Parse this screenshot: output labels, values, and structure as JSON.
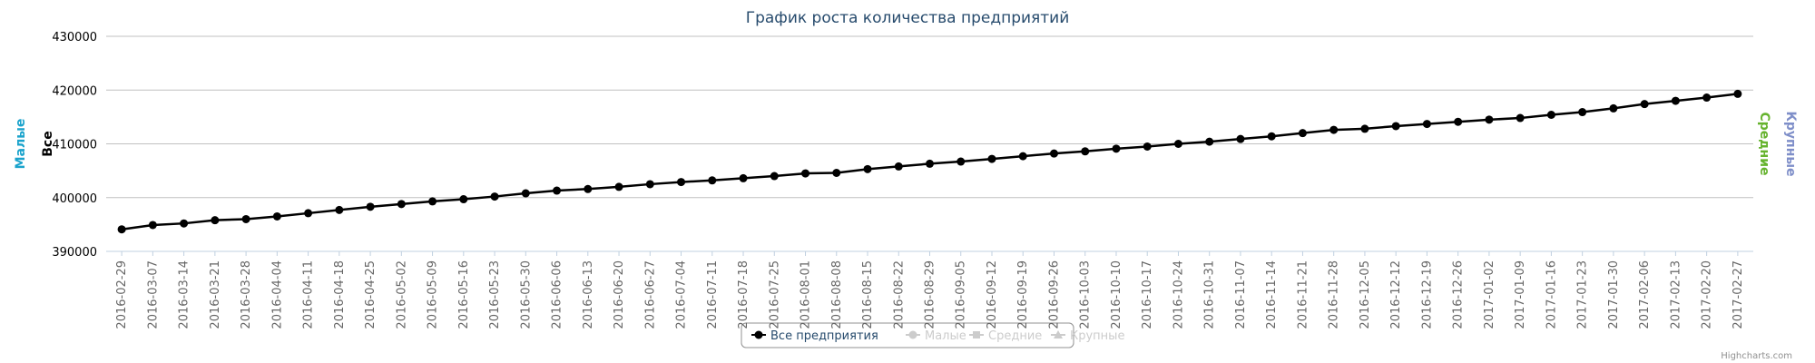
{
  "chart_data": {
    "type": "line",
    "title": "График роста количества предприятий",
    "y_axis_titles": [
      {
        "text": "Малые",
        "color": "#1aa3cc"
      },
      {
        "text": "Все",
        "color": "#000000"
      }
    ],
    "y2_axis_titles": [
      {
        "text": "Средние",
        "color": "#66b32e"
      },
      {
        "text": "Крупные",
        "color": "#7f8fc9"
      }
    ],
    "categories": [
      "2016-02-29",
      "2016-03-07",
      "2016-03-14",
      "2016-03-21",
      "2016-03-28",
      "2016-04-04",
      "2016-04-11",
      "2016-04-18",
      "2016-04-25",
      "2016-05-02",
      "2016-05-09",
      "2016-05-16",
      "2016-05-23",
      "2016-05-30",
      "2016-06-06",
      "2016-06-13",
      "2016-06-20",
      "2016-06-27",
      "2016-07-04",
      "2016-07-11",
      "2016-07-18",
      "2016-07-25",
      "2016-08-01",
      "2016-08-08",
      "2016-08-15",
      "2016-08-22",
      "2016-08-29",
      "2016-09-05",
      "2016-09-12",
      "2016-09-19",
      "2016-09-26",
      "2016-10-03",
      "2016-10-10",
      "2016-10-17",
      "2016-10-24",
      "2016-10-31",
      "2016-11-07",
      "2016-11-14",
      "2016-11-21",
      "2016-11-28",
      "2016-12-05",
      "2016-12-12",
      "2016-12-19",
      "2016-12-26",
      "2017-01-02",
      "2017-01-09",
      "2017-01-16",
      "2017-01-23",
      "2017-01-30",
      "2017-02-06",
      "2017-02-13",
      "2017-02-20",
      "2017-02-27"
    ],
    "series": [
      {
        "name": "Все предприятия",
        "color": "#000000",
        "marker": "circle",
        "visible": true,
        "values": [
          394100,
          394900,
          395200,
          395800,
          396000,
          396500,
          397100,
          397700,
          398300,
          398800,
          399300,
          399700,
          400200,
          400800,
          401300,
          401600,
          402000,
          402500,
          402900,
          403200,
          403600,
          404000,
          404500,
          404600,
          405300,
          405800,
          406300,
          406700,
          407200,
          407700,
          408200,
          408600,
          409100,
          409500,
          410000,
          410400,
          410900,
          411400,
          412000,
          412600,
          412800,
          413300,
          413700,
          414100,
          414500,
          414800,
          415400,
          415900,
          416600,
          417400,
          418000,
          418600,
          419300
        ]
      },
      {
        "name": "Малые",
        "color": "#1aa3cc",
        "marker": "circle",
        "visible": false
      },
      {
        "name": "Средние",
        "color": "#66b32e",
        "marker": "square",
        "visible": false
      },
      {
        "name": "Крупные",
        "color": "#7f8fc9",
        "marker": "triangle",
        "visible": false
      }
    ],
    "ylim": [
      390000,
      430000
    ],
    "yticks": [
      390000,
      400000,
      410000,
      420000,
      430000
    ],
    "grid": true,
    "legend": "bottom",
    "credits": "Highcharts.com"
  }
}
